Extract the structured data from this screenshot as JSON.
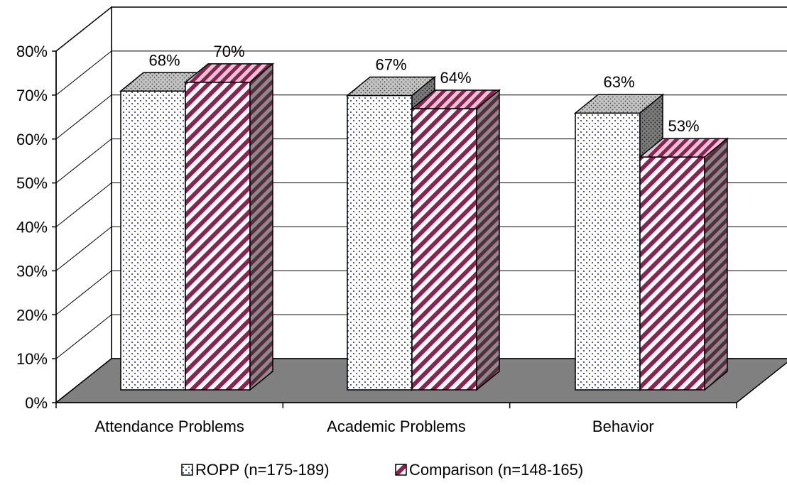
{
  "chart_data": {
    "type": "bar",
    "title": "",
    "xlabel": "",
    "ylabel": "",
    "categories": [
      "Attendance Problems",
      "Academic Problems",
      "Behavior"
    ],
    "series": [
      {
        "name": "ROPP (n=175-189)",
        "values": [
          68,
          67,
          63
        ],
        "labels": [
          "68%",
          "67%",
          "63%"
        ],
        "color": "#ffffff",
        "pattern": "dots",
        "pattern_color": "#1a237e"
      },
      {
        "name": "Comparison (n=148-165)",
        "values": [
          70,
          64,
          53
        ],
        "labels": [
          "70%",
          "64%",
          "53%"
        ],
        "color": "#ffffff",
        "pattern": "diagonal-stripes",
        "pattern_color": "#8b2252"
      }
    ],
    "ylim": [
      0,
      80
    ],
    "yticks": [
      0,
      10,
      20,
      30,
      40,
      50,
      60,
      70,
      80
    ],
    "ytick_labels": [
      "0%",
      "10%",
      "20%",
      "30%",
      "40%",
      "50%",
      "60%",
      "70%",
      "80%"
    ],
    "grid": true,
    "style": "3d-clustered-column",
    "floor_color": "#808080",
    "legend_position": "bottom"
  }
}
